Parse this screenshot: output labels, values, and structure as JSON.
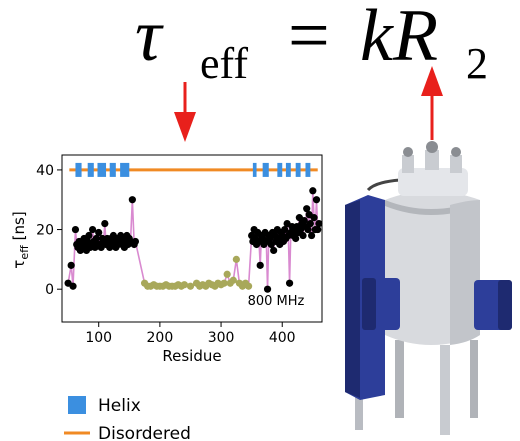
{
  "equation": {
    "lhs": "τ",
    "lhs_sub": "eff",
    "equals": "=",
    "rhs": "kR",
    "rhs_sub": "2"
  },
  "chart_data": {
    "type": "scatter",
    "xlabel": "Residue",
    "ylabel": "τ",
    "ylabel_sub": "eff",
    "ylabel_unit": "[ns]",
    "annotation": "800 MHz",
    "xlim": [
      40,
      465
    ],
    "ylim": [
      -11,
      45
    ],
    "xticks": [
      100,
      200,
      300,
      400
    ],
    "yticks": [
      0,
      20,
      40
    ],
    "line_color": "#d98ad0",
    "series": [
      {
        "color": "#000000",
        "x": [
          50,
          55,
          58,
          62,
          64,
          66,
          68,
          70,
          72,
          74,
          76,
          78,
          80,
          82,
          84,
          86,
          88,
          90,
          92,
          94,
          96,
          98,
          100,
          102,
          104,
          106,
          108,
          110,
          112,
          114,
          116,
          118,
          120,
          122,
          124,
          126,
          128,
          130,
          132,
          134,
          136,
          138,
          140,
          142,
          144,
          146,
          148,
          150,
          152,
          155,
          158,
          160
        ],
        "values": [
          2,
          8,
          1,
          20,
          15,
          14,
          16,
          13,
          15,
          14,
          17,
          15,
          13,
          16,
          18,
          14,
          15,
          20,
          16,
          14,
          17,
          15,
          19,
          15,
          14,
          17,
          16,
          22,
          15,
          17,
          16,
          14,
          17,
          15,
          18,
          16,
          14,
          17,
          15,
          16,
          18,
          15,
          17,
          14,
          16,
          18,
          15,
          17,
          16,
          30,
          15,
          16
        ]
      },
      {
        "color": "#a8a85a",
        "x": [
          175,
          180,
          185,
          190,
          195,
          200,
          205,
          210,
          215,
          220,
          225,
          230,
          235,
          240,
          250,
          260,
          265,
          270,
          275,
          280,
          285,
          290,
          295,
          300,
          305,
          310,
          315,
          320,
          325,
          330,
          335,
          340,
          345
        ],
        "values": [
          2,
          1,
          1,
          1.5,
          1,
          1,
          1,
          1.5,
          1,
          1,
          1,
          1.5,
          1,
          1.5,
          1,
          2,
          1,
          1.5,
          1,
          2,
          1.5,
          1,
          2,
          1.5,
          2,
          5,
          2,
          3,
          10,
          2,
          1,
          2,
          1
        ]
      },
      {
        "color": "#000000",
        "x": [
          350,
          352,
          354,
          356,
          358,
          360,
          362,
          364,
          366,
          368,
          370,
          372,
          374,
          376,
          378,
          380,
          382,
          384,
          386,
          388,
          390,
          392,
          394,
          396,
          398,
          400,
          402,
          404,
          406,
          408,
          410,
          412,
          414,
          416,
          418,
          420,
          422,
          424,
          426,
          428,
          430,
          432,
          434,
          436,
          438,
          440,
          442,
          444,
          446,
          448,
          450,
          452,
          454,
          456,
          458,
          460
        ],
        "values": [
          18,
          16,
          20,
          17,
          15,
          19,
          16,
          8,
          18,
          17,
          15,
          19,
          16,
          0,
          18,
          17,
          15,
          19,
          13,
          18,
          16,
          20,
          17,
          15,
          19,
          18,
          16,
          20,
          17,
          22,
          18,
          2,
          19,
          21,
          18,
          20,
          17,
          21,
          19,
          24,
          20,
          22,
          18,
          23,
          21,
          27,
          20,
          25,
          22,
          18,
          33,
          24,
          20,
          30,
          20,
          22
        ]
      }
    ],
    "track_value": 40,
    "helix_color": "#3b8fe0",
    "disordered_color": "#f08a24",
    "disordered_range": [
      52,
      458
    ],
    "helix_segments": [
      [
        62,
        72
      ],
      [
        82,
        92
      ],
      [
        98,
        112
      ],
      [
        118,
        128
      ],
      [
        135,
        150
      ],
      [
        352,
        358
      ],
      [
        368,
        378
      ],
      [
        392,
        400
      ],
      [
        406,
        414
      ],
      [
        422,
        430
      ],
      [
        438,
        446
      ]
    ],
    "legend": {
      "helix": "Helix",
      "disordered": "Disordered"
    }
  }
}
